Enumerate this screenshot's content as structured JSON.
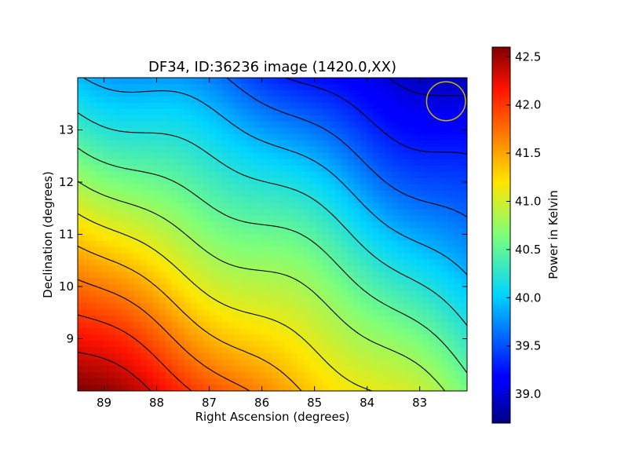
{
  "chart_data": {
    "type": "heatmap",
    "title": "DF34, ID:36236 image (1420.0,XX)",
    "xlabel": "Right Ascension (degrees)",
    "ylabel": "Declination (degrees)",
    "xlim": [
      89.5,
      82.1
    ],
    "ylim": [
      8.0,
      14.0
    ],
    "x_ticks": [
      "89",
      "88",
      "87",
      "86",
      "85",
      "84",
      "83"
    ],
    "x_tick_values": [
      89,
      88,
      87,
      86,
      85,
      84,
      83
    ],
    "y_ticks": [
      "9",
      "10",
      "11",
      "12",
      "13"
    ],
    "y_tick_values": [
      9,
      10,
      11,
      12,
      13
    ],
    "colorbar": {
      "label": "Power in Kelvin",
      "range": [
        38.7,
        42.6
      ],
      "ticks": [
        "39.0",
        "39.5",
        "40.0",
        "40.5",
        "41.0",
        "41.5",
        "42.0",
        "42.5"
      ],
      "tick_values": [
        39.0,
        39.5,
        40.0,
        40.5,
        41.0,
        41.5,
        42.0,
        42.5
      ],
      "colormap": "jet"
    },
    "field": {
      "description_of_gradient": "high in lower-left, low in upper-right",
      "corner_values": {
        "ra89.5_dec8.0": 42.6,
        "ra82.1_dec8.0": 40.6,
        "ra89.5_dec14.0": 40.0,
        "ra82.1_dec14.0": 38.8
      }
    },
    "contour_levels": [
      39.0,
      39.3,
      39.6,
      39.9,
      40.2,
      40.5,
      40.8,
      41.1,
      41.4,
      41.7,
      42.0,
      42.3
    ],
    "contour_color": "#000000",
    "beam_marker": {
      "ra": 82.5,
      "dec": 13.55,
      "radius_deg": 0.37,
      "color": "#c8b400"
    }
  }
}
